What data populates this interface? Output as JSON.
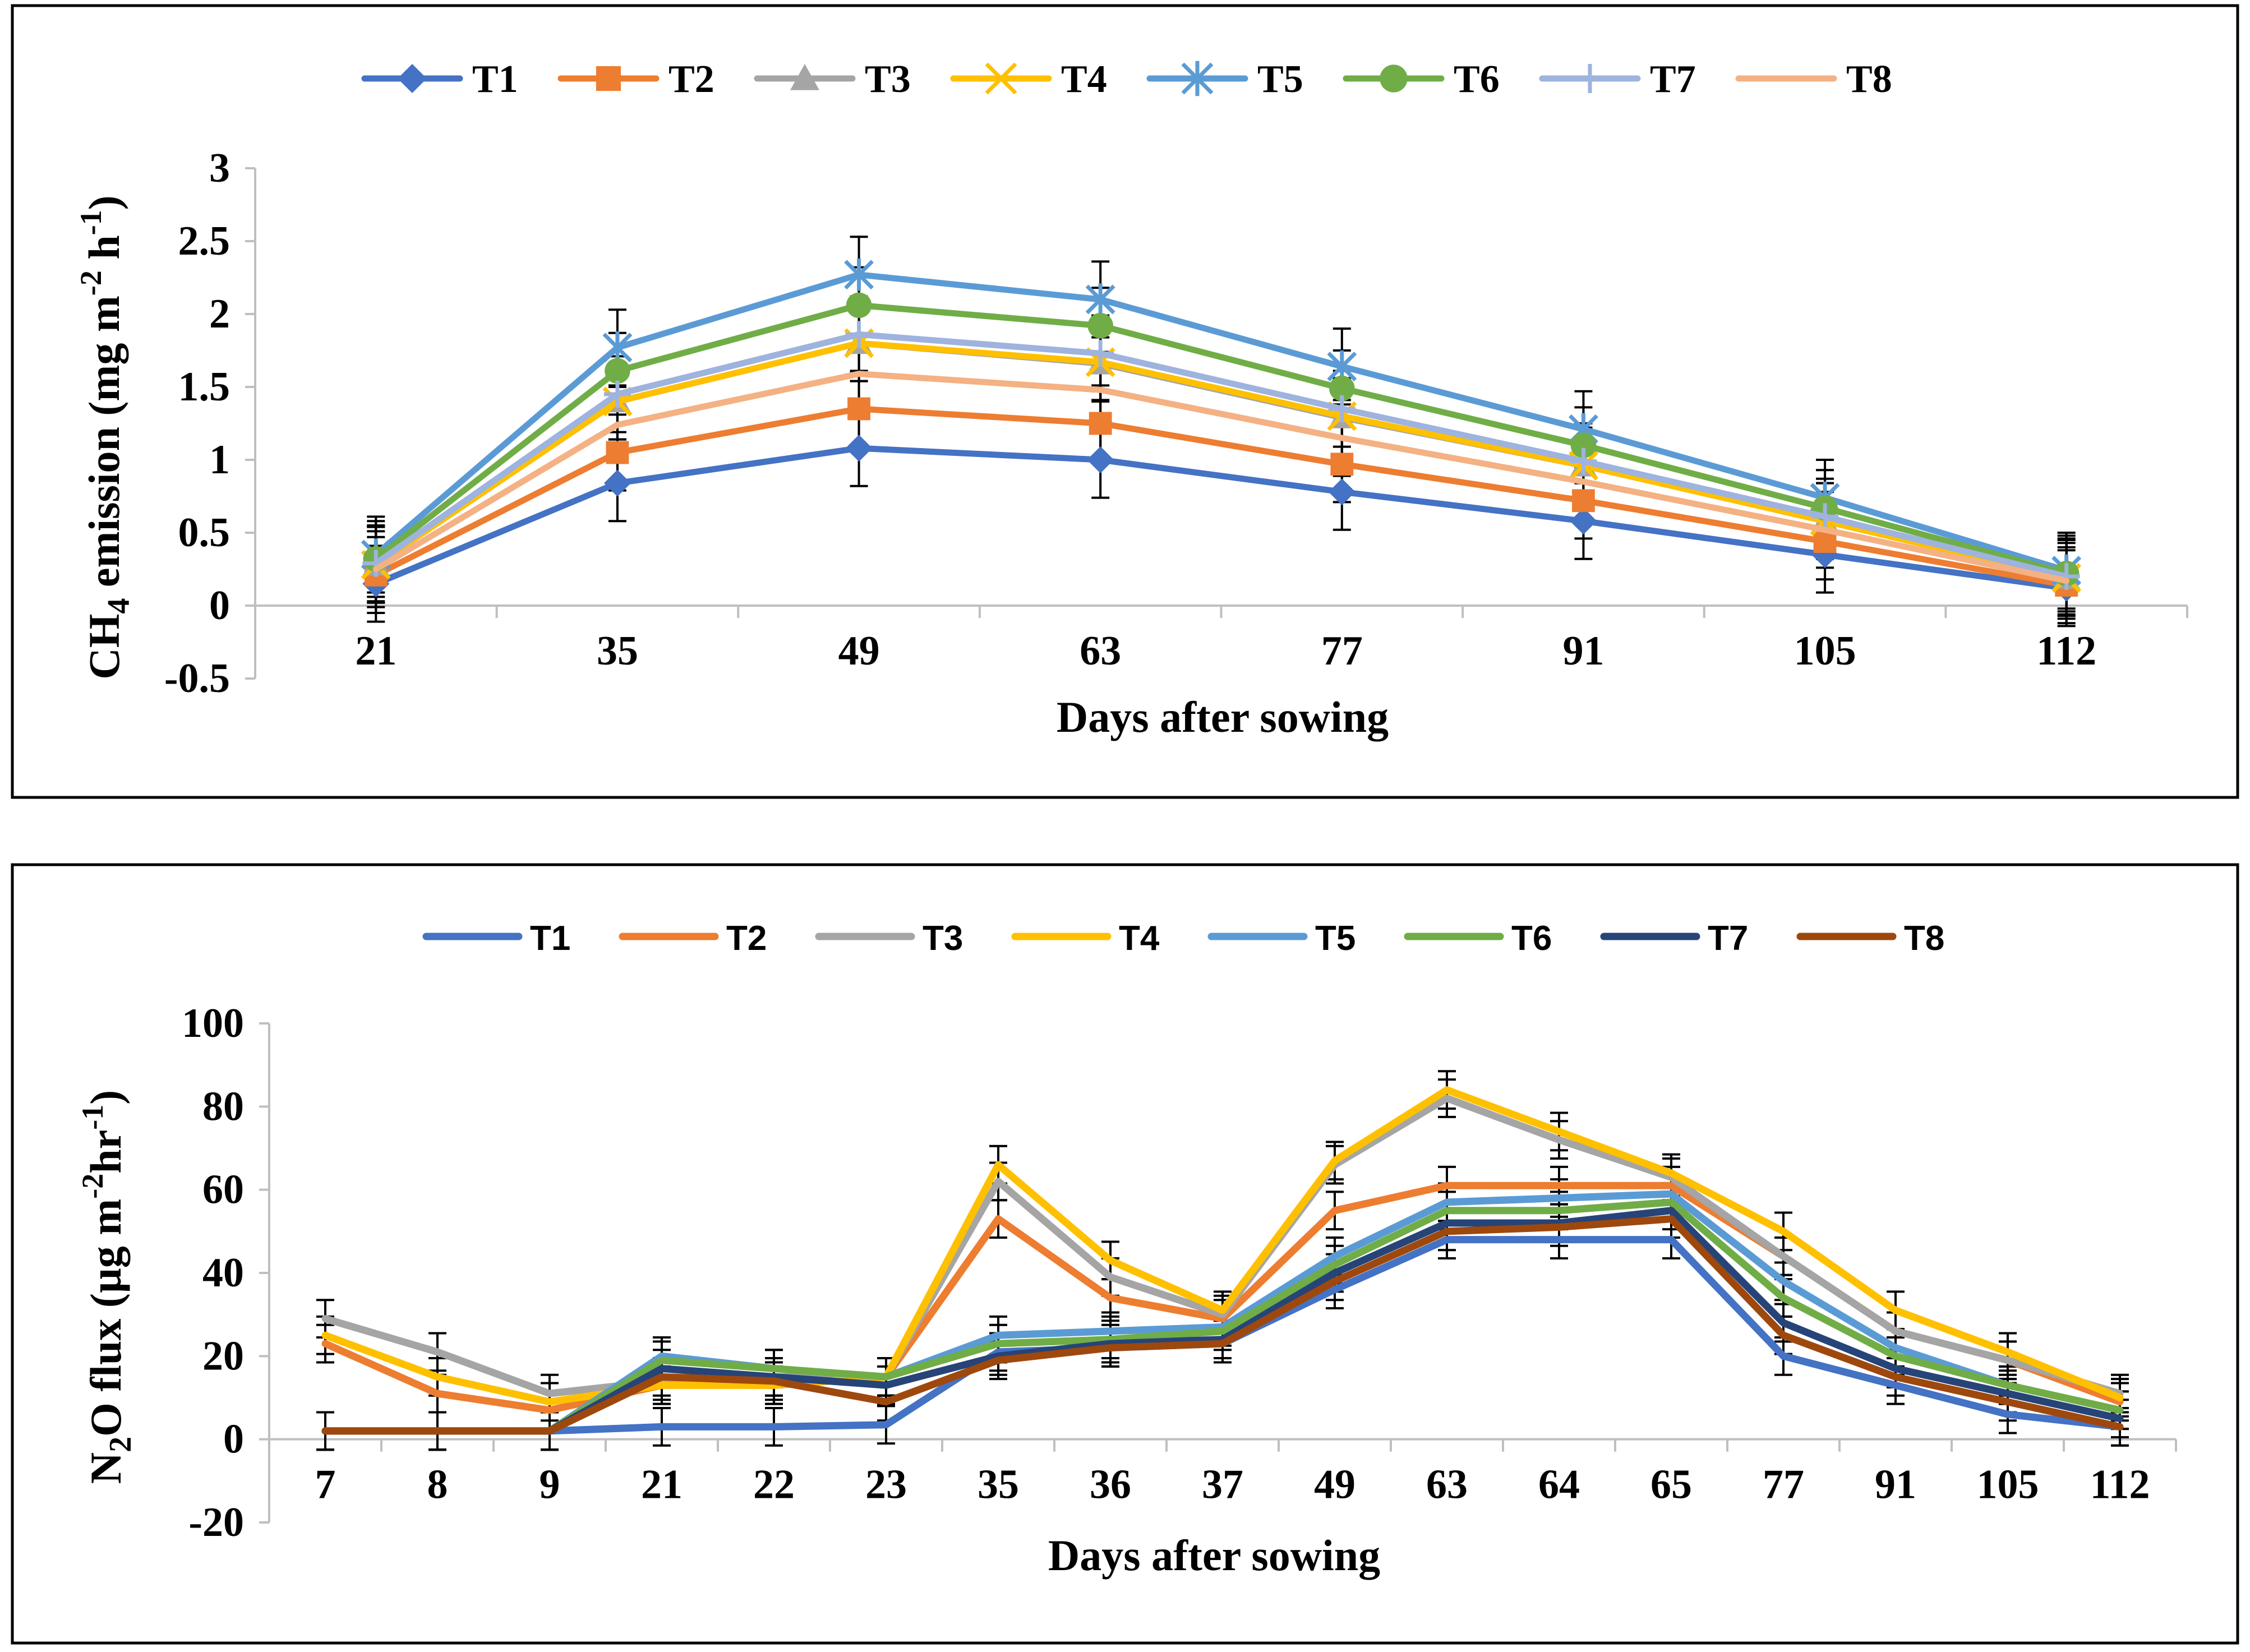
{
  "chart_data": [
    {
      "type": "line",
      "title": "",
      "xlabel": "Days after sowing",
      "ylabel_parts": [
        "CH",
        "4",
        " emission (mg m",
        "-2",
        " h",
        "-1",
        ")"
      ],
      "categories": [
        "21",
        "35",
        "49",
        "63",
        "77",
        "91",
        "105",
        "112"
      ],
      "ylim": [
        -0.5,
        3
      ],
      "yticks": [
        "-0.5",
        "0",
        "0.5",
        "1",
        "1.5",
        "2",
        "2.5",
        "3"
      ],
      "legend_position": "top",
      "error_bar": 0.26,
      "series": [
        {
          "name": "T1",
          "color": "#4472c4",
          "marker": "diamond",
          "values": [
            0.15,
            0.84,
            1.08,
            1.0,
            0.78,
            0.58,
            0.35,
            0.12
          ]
        },
        {
          "name": "T2",
          "color": "#ed7d31",
          "marker": "square",
          "values": [
            0.21,
            1.05,
            1.35,
            1.25,
            0.97,
            0.72,
            0.44,
            0.14
          ]
        },
        {
          "name": "T3",
          "color": "#a5a5a5",
          "marker": "triangle",
          "values": [
            0.28,
            1.4,
            1.8,
            1.66,
            1.29,
            0.96,
            0.58,
            0.19
          ]
        },
        {
          "name": "T4",
          "color": "#ffc000",
          "marker": "x",
          "values": [
            0.28,
            1.4,
            1.8,
            1.67,
            1.3,
            0.96,
            0.58,
            0.19
          ]
        },
        {
          "name": "T5",
          "color": "#5b9bd5",
          "marker": "star",
          "values": [
            0.35,
            1.77,
            2.27,
            2.1,
            1.64,
            1.21,
            0.74,
            0.24
          ]
        },
        {
          "name": "T6",
          "color": "#70ad47",
          "marker": "circle",
          "values": [
            0.32,
            1.61,
            2.06,
            1.92,
            1.49,
            1.1,
            0.67,
            0.22
          ]
        },
        {
          "name": "T7",
          "color": "#9eb3de",
          "marker": "plus",
          "values": [
            0.29,
            1.45,
            1.86,
            1.73,
            1.35,
            0.99,
            0.61,
            0.2
          ]
        },
        {
          "name": "T8",
          "color": "#f4b183",
          "marker": "none",
          "values": [
            0.25,
            1.24,
            1.59,
            1.48,
            1.15,
            0.85,
            0.52,
            0.17
          ]
        }
      ]
    },
    {
      "type": "line",
      "title": "",
      "xlabel": "Days after sowing",
      "ylabel_parts": [
        "N",
        "2",
        "O flux (µg m",
        "-2",
        "hr",
        "-1",
        ")"
      ],
      "categories": [
        "7",
        "8",
        "9",
        "21",
        "22",
        "23",
        "35",
        "36",
        "37",
        "49",
        "63",
        "64",
        "65",
        "77",
        "91",
        "105",
        "112"
      ],
      "ylim": [
        -20,
        100
      ],
      "yticks": [
        "-20",
        "0",
        "20",
        "40",
        "60",
        "80",
        "100"
      ],
      "legend_position": "top",
      "error_bar": 4.5,
      "series": [
        {
          "name": "T1",
          "color": "#4472c4",
          "values": [
            2,
            2,
            2,
            3,
            3,
            3.5,
            21,
            22,
            23,
            36,
            48,
            48,
            48,
            20,
            13,
            6,
            3
          ]
        },
        {
          "name": "T2",
          "color": "#ed7d31",
          "values": [
            23,
            11,
            7,
            13,
            13,
            15,
            53,
            34,
            29,
            55,
            61,
            61,
            61,
            44,
            26,
            19,
            9
          ]
        },
        {
          "name": "T3",
          "color": "#a5a5a5",
          "values": [
            29,
            21,
            11,
            14,
            15,
            15,
            62,
            39,
            30,
            66,
            82,
            72,
            63,
            44,
            26,
            19,
            11
          ]
        },
        {
          "name": "T4",
          "color": "#ffc000",
          "values": [
            25,
            15,
            9,
            13,
            13,
            15,
            66,
            43,
            31,
            67,
            84,
            74,
            64,
            50,
            31,
            21,
            10
          ]
        },
        {
          "name": "T5",
          "color": "#5b9bd5",
          "values": [
            2,
            2,
            2,
            20,
            17,
            15,
            25,
            26,
            27,
            44,
            57,
            58,
            59,
            38,
            22,
            13,
            7
          ]
        },
        {
          "name": "T6",
          "color": "#70ad47",
          "values": [
            2,
            2,
            2,
            19,
            17,
            15,
            23,
            24,
            26,
            42,
            55,
            55,
            57,
            34,
            20,
            13,
            7
          ]
        },
        {
          "name": "T7",
          "color": "#264478",
          "values": [
            2,
            2,
            2,
            17,
            15,
            13,
            20,
            23,
            24,
            40,
            52,
            52,
            55,
            28,
            17,
            11,
            5
          ]
        },
        {
          "name": "T8",
          "color": "#9e480e",
          "values": [
            2,
            2,
            2,
            15,
            14,
            9,
            19,
            22,
            23,
            38,
            50,
            51,
            53,
            25,
            15,
            9,
            3
          ]
        }
      ]
    }
  ]
}
